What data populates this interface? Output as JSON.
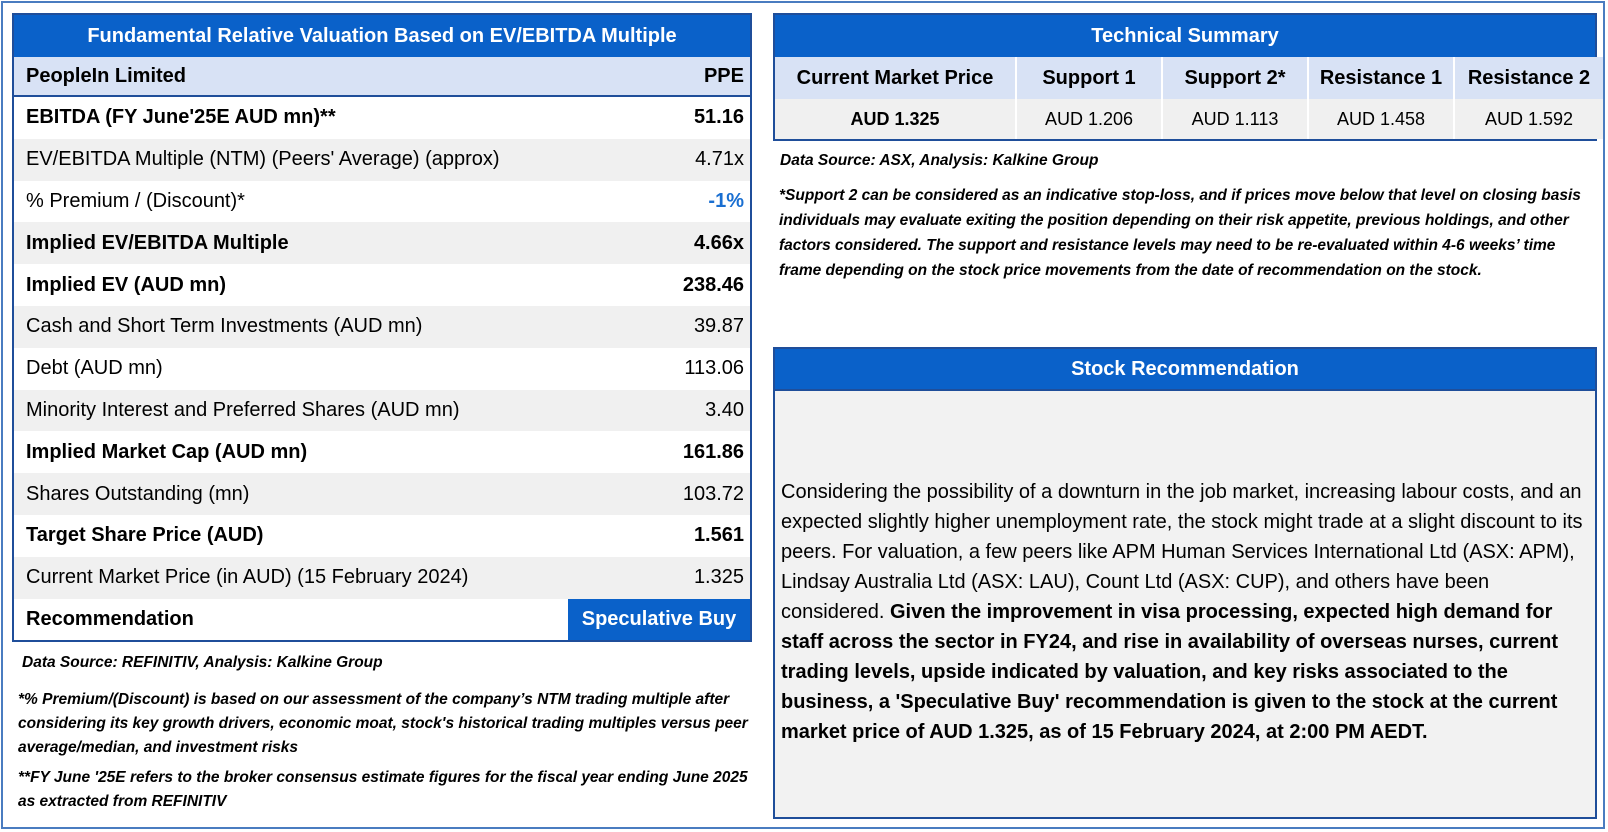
{
  "valuation": {
    "title": "Fundamental Relative Valuation Based on EV/EBITDA Multiple",
    "company": "PeopleIn Limited",
    "ticker": "PPE",
    "rows": [
      {
        "label": "EBITDA (FY June'25E AUD mn)**",
        "value": "51.16",
        "bold": true,
        "alt": false
      },
      {
        "label": "EV/EBITDA Multiple (NTM)  (Peers' Average) (approx)",
        "value": "4.71x",
        "bold": false,
        "alt": true
      },
      {
        "label": "% Premium / (Discount)*",
        "value": "-1%",
        "bold": false,
        "alt": false,
        "highlight": true
      },
      {
        "label": "Implied EV/EBITDA Multiple",
        "value": "4.66x",
        "bold": true,
        "alt": true
      },
      {
        "label": "Implied EV (AUD mn)",
        "value": "238.46",
        "bold": true,
        "alt": false
      },
      {
        "label": "Cash and Short Term Investments (AUD mn)",
        "value": "39.87",
        "bold": false,
        "alt": true
      },
      {
        "label": "Debt (AUD mn)",
        "value": "113.06",
        "bold": false,
        "alt": false
      },
      {
        "label": "Minority Interest and Preferred Shares (AUD mn)",
        "value": "3.40",
        "bold": false,
        "alt": true
      },
      {
        "label": "Implied Market Cap (AUD mn)",
        "value": "161.86",
        "bold": true,
        "alt": false
      },
      {
        "label": "Shares Outstanding (mn)",
        "value": "103.72",
        "bold": false,
        "alt": true
      },
      {
        "label": "Target Share Price (AUD)",
        "value": "1.561",
        "bold": true,
        "alt": false
      },
      {
        "label": "Current Market Price (in AUD) (15 February 2024)",
        "value": "1.325",
        "bold": false,
        "alt": true
      }
    ],
    "recommendation_label": "Recommendation",
    "recommendation_value": "Speculative Buy",
    "source": "Data Source: REFINITIV, Analysis: Kalkine Group",
    "note_premium": "*% Premium/(Discount) is based on our assessment of the company’s NTM trading multiple after considering its key growth drivers, economic moat, stock's historical trading multiples versus peer average/median, and investment risks",
    "note_fy": "**FY June '25E refers to the broker consensus estimate figures for the fiscal year ending June 2025  as extracted from REFINITIV"
  },
  "technical": {
    "title": "Technical Summary",
    "headers": [
      "Current Market Price",
      "Support 1",
      "Support 2*",
      "Resistance 1",
      "Resistance 2"
    ],
    "values": [
      "AUD 1.325",
      "AUD 1.206",
      "AUD 1.113",
      "AUD 1.458",
      "AUD 1.592"
    ],
    "source": "Data Source: ASX, Analysis: Kalkine Group",
    "note": "*Support 2 can be considered as an indicative stop-loss, and if prices move below that level on closing basis individuals may evaluate exiting the position depending on their risk appetite, previous holdings, and other factors considered. The support and resistance levels may need to be re-evaluated within 4-6 weeks’ time frame depending on the stock price movements from the date of recommendation on the stock."
  },
  "stock_recommendation": {
    "title": "Stock Recommendation",
    "text_regular": "Considering the possibility of a downturn in the job market, increasing labour costs, and an expected slightly higher unemployment rate, the stock might trade at a slight discount to its peers. For valuation, a few peers like APM Human Services International Ltd (ASX: APM), Lindsay Australia Ltd (ASX: LAU), Count Ltd (ASX: CUP), and others have been considered. ",
    "text_bold": "Given the improvement in visa processing, expected high demand for staff across the sector in FY24, and rise in availability of overseas nurses, current trading levels, upside indicated by valuation, and key risks associated to the business, a 'Speculative Buy' recommendation is given to the stock at the current market price of AUD 1.325, as of 15 February 2024, at 2:00 PM AEDT."
  },
  "colors": {
    "header_blue": "#0a61c9",
    "subheader_blue": "#d8e2f5",
    "row_alt": "#f0f0f0",
    "highlight_text": "#1a6fd1"
  }
}
